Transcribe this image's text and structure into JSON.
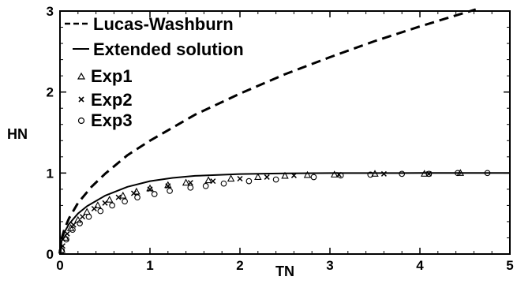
{
  "chart_data": {
    "type": "line",
    "title": "",
    "xlabel": "TN",
    "ylabel": "HN",
    "xlim": [
      0,
      5
    ],
    "ylim": [
      0,
      3
    ],
    "x_ticks": [
      "0",
      "1",
      "2",
      "3",
      "4",
      "5"
    ],
    "y_ticks": [
      "0",
      "1",
      "2",
      "3"
    ],
    "grid": false,
    "legend": "top-left",
    "series": [
      {
        "name": "Lucas-Washburn",
        "kind": "line",
        "style": "dashed",
        "x": [
          0,
          0.02,
          0.05,
          0.1,
          0.2,
          0.35,
          0.5,
          0.75,
          1.0,
          1.5,
          2.0,
          2.5,
          3.0,
          3.5,
          4.0,
          4.5,
          4.62
        ],
        "y": [
          0,
          0.2,
          0.31,
          0.44,
          0.63,
          0.83,
          0.99,
          1.22,
          1.4,
          1.72,
          1.98,
          2.22,
          2.43,
          2.63,
          2.81,
          2.98,
          3.02
        ]
      },
      {
        "name": "Extended solution",
        "kind": "line",
        "style": "solid",
        "x": [
          0,
          0.02,
          0.05,
          0.1,
          0.2,
          0.3,
          0.5,
          0.75,
          1.0,
          1.25,
          1.5,
          2.0,
          2.5,
          3.0,
          4.0,
          5.0
        ],
        "y": [
          0,
          0.18,
          0.27,
          0.37,
          0.5,
          0.59,
          0.72,
          0.83,
          0.9,
          0.94,
          0.965,
          0.988,
          0.996,
          0.999,
          1.0,
          1.0
        ]
      },
      {
        "name": "Exp1",
        "kind": "scatter",
        "marker": "triangle",
        "x": [
          0.02,
          0.06,
          0.12,
          0.2,
          0.3,
          0.42,
          0.55,
          0.7,
          0.85,
          1.0,
          1.2,
          1.4,
          1.65,
          1.9,
          2.2,
          2.5,
          2.75,
          3.05,
          3.5,
          4.05,
          4.45
        ],
        "y": [
          0.05,
          0.2,
          0.32,
          0.42,
          0.52,
          0.6,
          0.67,
          0.72,
          0.77,
          0.81,
          0.85,
          0.88,
          0.91,
          0.93,
          0.95,
          0.965,
          0.975,
          0.98,
          0.99,
          0.99,
          1.0
        ]
      },
      {
        "name": "Exp2",
        "kind": "scatter",
        "marker": "x",
        "x": [
          0.03,
          0.08,
          0.15,
          0.25,
          0.38,
          0.5,
          0.65,
          0.82,
          1.0,
          1.2,
          1.45,
          1.7,
          2.0,
          2.3,
          2.6,
          3.1,
          3.6,
          4.1
        ],
        "y": [
          0.1,
          0.25,
          0.36,
          0.46,
          0.56,
          0.63,
          0.7,
          0.75,
          0.8,
          0.84,
          0.88,
          0.9,
          0.93,
          0.95,
          0.97,
          0.98,
          0.99,
          0.99
        ]
      },
      {
        "name": "Exp3",
        "kind": "scatter",
        "marker": "circle",
        "x": [
          0.02,
          0.07,
          0.14,
          0.22,
          0.32,
          0.45,
          0.58,
          0.72,
          0.86,
          1.05,
          1.22,
          1.45,
          1.62,
          1.82,
          2.1,
          2.4,
          2.82,
          3.12,
          3.45,
          3.8,
          4.1,
          4.42,
          4.75
        ],
        "y": [
          0.04,
          0.18,
          0.3,
          0.38,
          0.46,
          0.53,
          0.6,
          0.65,
          0.7,
          0.74,
          0.78,
          0.82,
          0.84,
          0.87,
          0.9,
          0.92,
          0.95,
          0.97,
          0.98,
          0.99,
          0.99,
          1.0,
          1.0
        ]
      }
    ]
  }
}
